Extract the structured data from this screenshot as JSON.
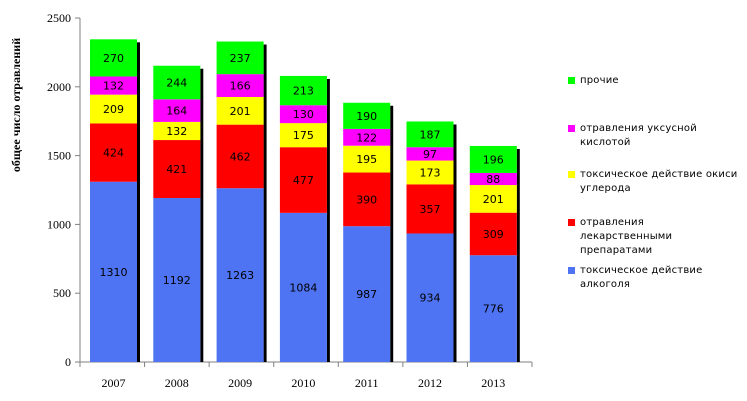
{
  "chart_data": {
    "type": "bar",
    "stacked": true,
    "categories": [
      "2007",
      "2008",
      "2009",
      "2010",
      "2011",
      "2012",
      "2013"
    ],
    "series": [
      {
        "name": "токсическое действие алкоголя",
        "color": "#4f74f3",
        "values": [
          1310,
          1192,
          1263,
          1084,
          987,
          934,
          776
        ]
      },
      {
        "name": "отравления лекарственными препаратами",
        "color": "#ff0000",
        "values": [
          424,
          421,
          462,
          477,
          390,
          357,
          309
        ]
      },
      {
        "name": "токсическое действие окиси углерода",
        "color": "#ffff00",
        "values": [
          209,
          132,
          201,
          175,
          195,
          173,
          201
        ]
      },
      {
        "name": "отравления уксусной кислотой",
        "color": "#ff00ff",
        "values": [
          132,
          164,
          166,
          130,
          122,
          97,
          88
        ]
      },
      {
        "name": "прочие",
        "color": "#00ff00",
        "values": [
          270,
          244,
          237,
          213,
          190,
          187,
          196
        ]
      }
    ],
    "ylabel": "общее число отравлений",
    "ylim": [
      0,
      2500
    ],
    "yticks": [
      "0",
      "500",
      "1000",
      "1500",
      "2000",
      "2500"
    ],
    "grid": false,
    "legend_position": "right"
  }
}
